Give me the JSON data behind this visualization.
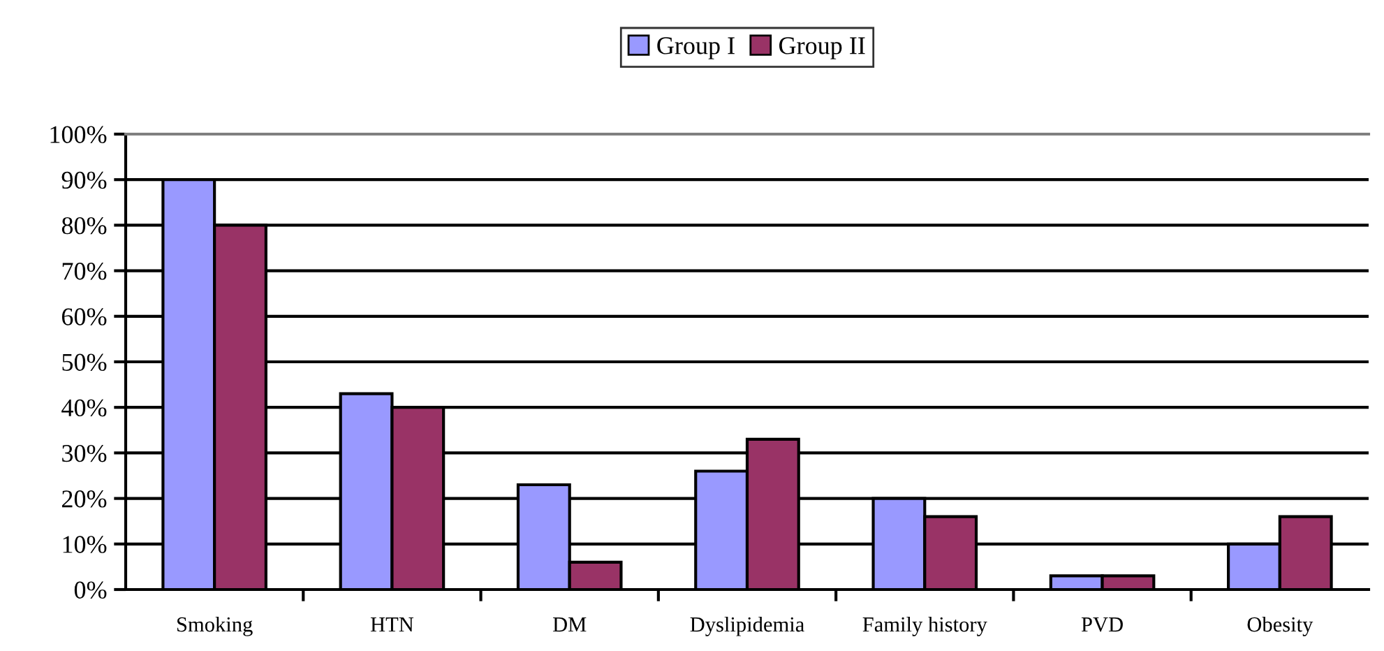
{
  "chart_data": {
    "type": "bar",
    "categories": [
      "Smoking",
      "HTN",
      "DM",
      "Dyslipidemia",
      "Family history",
      "PVD",
      "Obesity"
    ],
    "series": [
      {
        "name": "Group I",
        "color": "#9999ff",
        "values": [
          90,
          43,
          23,
          26,
          20,
          3,
          10
        ]
      },
      {
        "name": "Group II",
        "color": "#993366",
        "values": [
          80,
          40,
          6,
          33,
          16,
          3,
          16
        ]
      }
    ],
    "ylim": [
      0,
      100
    ],
    "yticks": [
      {
        "value": 0,
        "label": "0%"
      },
      {
        "value": 10,
        "label": "10%"
      },
      {
        "value": 20,
        "label": "20%"
      },
      {
        "value": 30,
        "label": "30%"
      },
      {
        "value": 40,
        "label": "40%"
      },
      {
        "value": 50,
        "label": "50%"
      },
      {
        "value": 60,
        "label": "60%"
      },
      {
        "value": 70,
        "label": "70%"
      },
      {
        "value": 80,
        "label": "80%"
      },
      {
        "value": 90,
        "label": "90%"
      },
      {
        "value": 100,
        "label": "100%"
      }
    ],
    "grid": "y",
    "legend": "top"
  }
}
